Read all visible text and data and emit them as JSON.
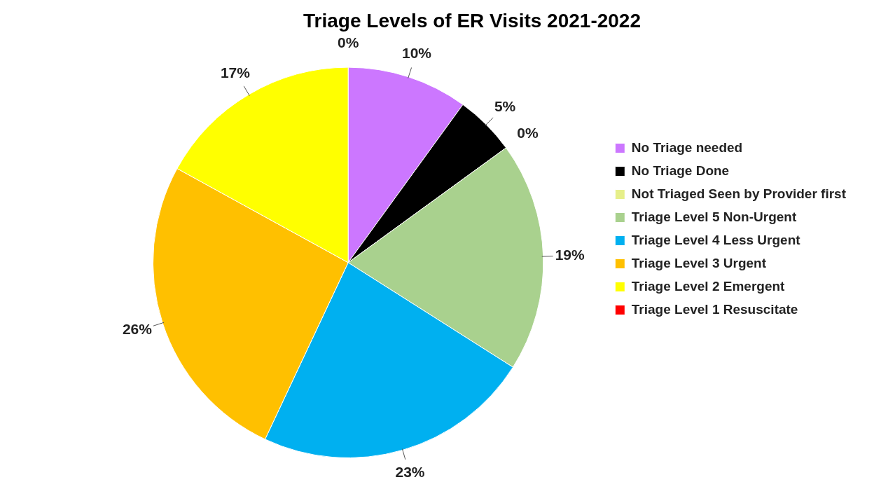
{
  "chart_data": {
    "type": "pie",
    "title": "Triage Levels of ER Visits 2021-2022",
    "categories": [
      "No Triage needed",
      "No Triage Done",
      "Not Triaged Seen by Provider first",
      "Triage Level 5 Non-Urgent",
      "Triage Level 4 Less Urgent",
      "Triage Level 3 Urgent",
      "Triage Level 2 Emergent",
      "Triage Level 1 Resuscitate"
    ],
    "values": [
      10,
      5,
      0,
      19,
      23,
      26,
      17,
      0
    ],
    "value_labels": [
      "10%",
      "5%",
      "0%",
      "19%",
      "23%",
      "26%",
      "17%",
      "0%"
    ],
    "colors": [
      "#cc77ff",
      "#000000",
      "#e6ef8a",
      "#a9d18e",
      "#00b0f0",
      "#ffc000",
      "#ffff00",
      "#ff0000"
    ],
    "legend": "right"
  }
}
